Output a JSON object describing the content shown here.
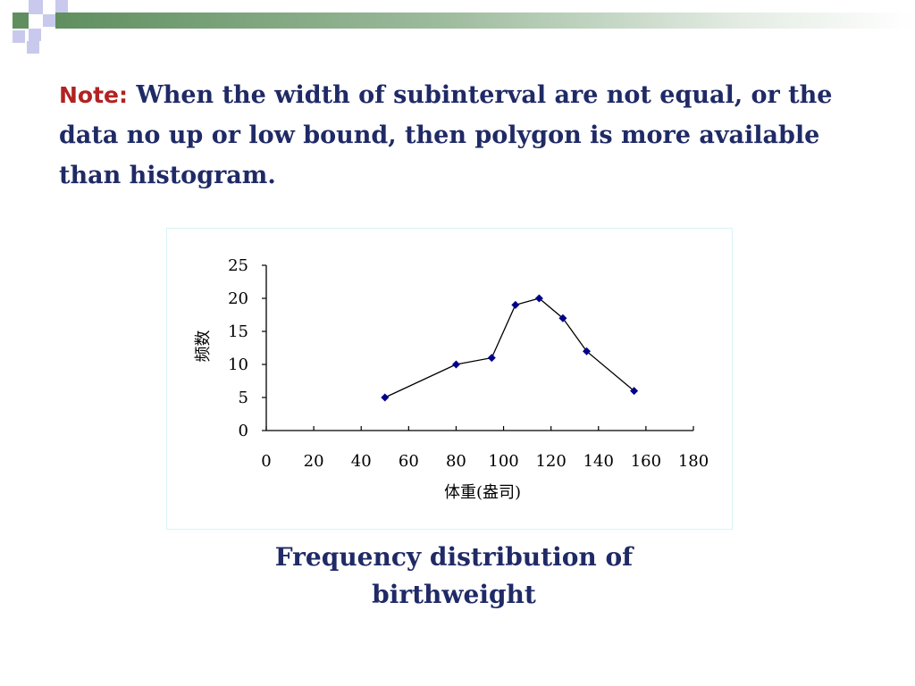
{
  "slide": {
    "note_label": "Note:",
    "note_text": "When the width of subinterval are not equal, or the data no up or low bound, then polygon is more available than histogram.",
    "caption": "Frequency distribution of birthweight",
    "colors": {
      "note_label": "#b22222",
      "text": "#1f2a66",
      "marker": "#00008b",
      "band": "#5f8f5f"
    }
  },
  "chart_data": {
    "type": "line",
    "title": "",
    "xlabel": "体重(盎司)",
    "ylabel": "频数",
    "xlim": [
      0,
      180
    ],
    "ylim": [
      0,
      25
    ],
    "xticks": [
      0,
      20,
      40,
      60,
      80,
      100,
      120,
      140,
      160,
      180
    ],
    "yticks": [
      0,
      5,
      10,
      15,
      20,
      25
    ],
    "grid": false,
    "legend": "none",
    "series": [
      {
        "x": [
          50,
          80,
          95,
          105,
          115,
          125,
          135,
          155
        ],
        "y": [
          5,
          10,
          11,
          19,
          20,
          17,
          12,
          6
        ],
        "marker": "diamond"
      }
    ]
  }
}
